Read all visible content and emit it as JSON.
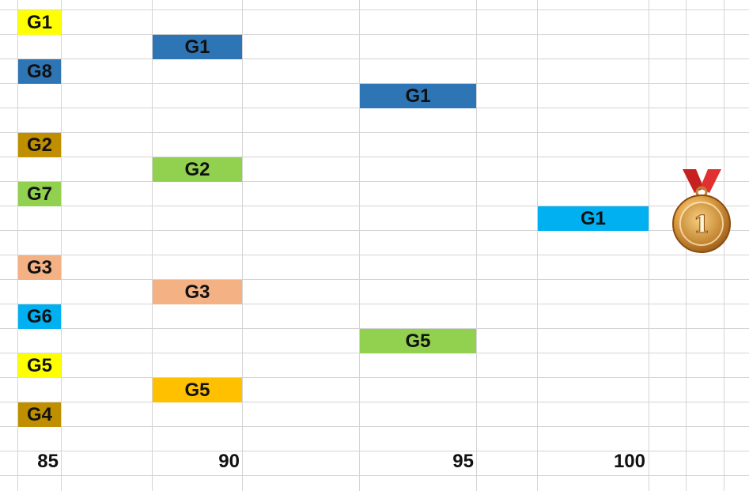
{
  "colors": {
    "yellow": "#ffff00",
    "dark_blue": "#2e75b6",
    "dark_gold": "#bf8f00",
    "light_green": "#92d050",
    "salmon": "#f4b183",
    "sky_blue": "#00b0f0",
    "orange": "#ffc000",
    "grid": "#d4d4d4"
  },
  "left_column": [
    {
      "label": "G1",
      "color": "#ffff00"
    },
    {
      "label": "G8",
      "color": "#2e75b6"
    },
    {
      "label": "G2",
      "color": "#bf8f00"
    },
    {
      "label": "G7",
      "color": "#92d050"
    },
    {
      "label": "G3",
      "color": "#f4b183"
    },
    {
      "label": "G6",
      "color": "#00b0f0"
    },
    {
      "label": "G5",
      "color": "#ffff00"
    },
    {
      "label": "G4",
      "color": "#bf8f00"
    }
  ],
  "round_90": [
    {
      "label": "G1",
      "color": "#2e75b6"
    },
    {
      "label": "G2",
      "color": "#92d050"
    },
    {
      "label": "G3",
      "color": "#f4b183"
    },
    {
      "label": "G5",
      "color": "#ffc000"
    }
  ],
  "round_95": [
    {
      "label": "G1",
      "color": "#2e75b6"
    },
    {
      "label": "G5",
      "color": "#92d050"
    }
  ],
  "round_100": [
    {
      "label": "G1",
      "color": "#00b0f0"
    }
  ],
  "axis": {
    "labels": [
      "85",
      "90",
      "95",
      "100"
    ]
  },
  "medal": {
    "icon": "gold-medal-icon",
    "number": "1"
  }
}
